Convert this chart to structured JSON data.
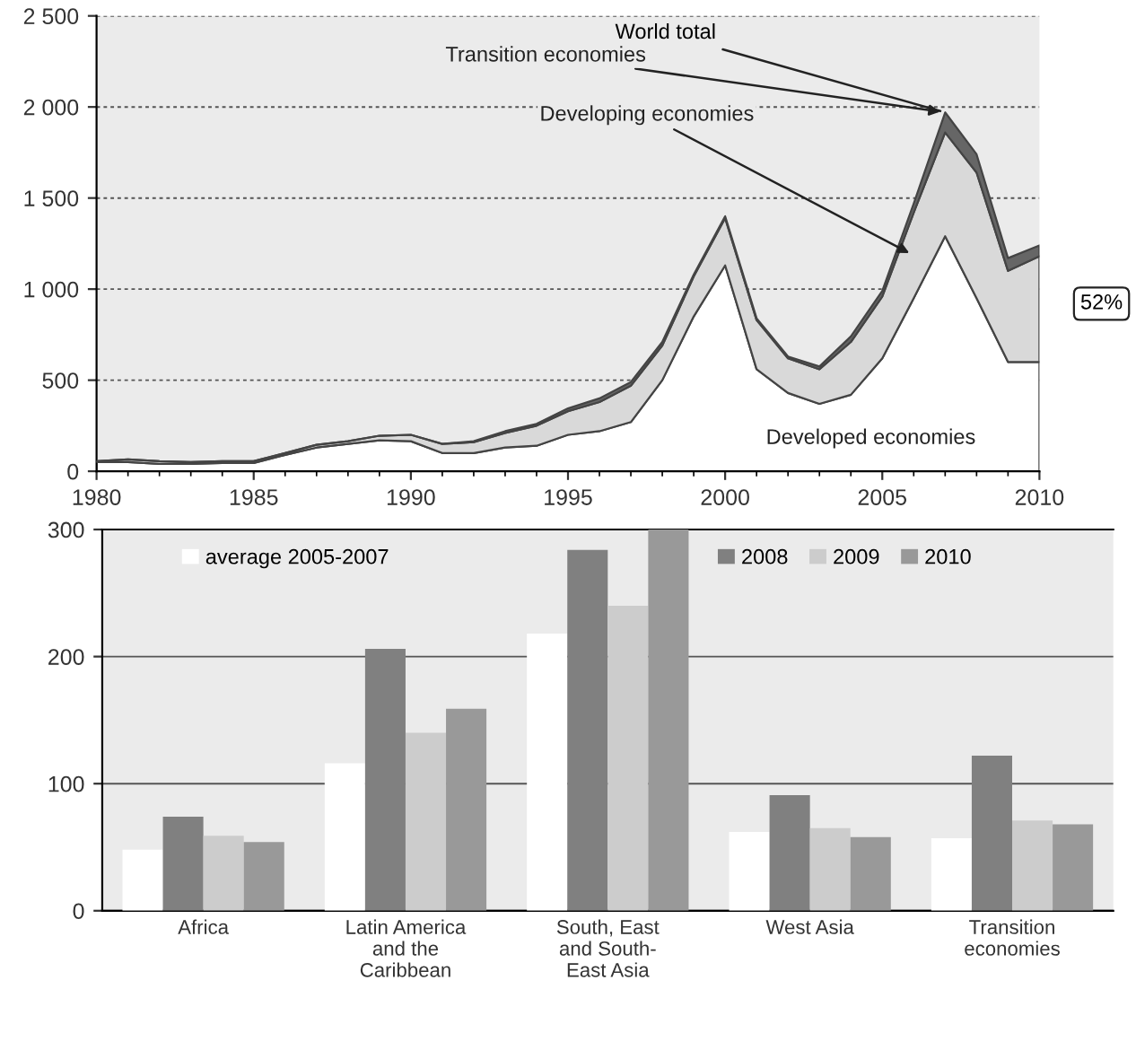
{
  "chart_data": [
    {
      "type": "area",
      "stacked": true,
      "x": [
        1980,
        1981,
        1982,
        1983,
        1984,
        1985,
        1986,
        1987,
        1988,
        1989,
        1990,
        1991,
        1992,
        1993,
        1994,
        1995,
        1996,
        1997,
        1998,
        1999,
        2000,
        2001,
        2002,
        2003,
        2004,
        2005,
        2006,
        2007,
        2008,
        2009,
        2010
      ],
      "series": [
        {
          "name": "Developed economies",
          "color": "#ffffff",
          "values": [
            50,
            50,
            40,
            40,
            45,
            45,
            90,
            130,
            150,
            170,
            165,
            100,
            100,
            130,
            140,
            200,
            220,
            270,
            500,
            850,
            1130,
            560,
            430,
            370,
            420,
            620,
            950,
            1290,
            950,
            600,
            600
          ]
        },
        {
          "name": "Developing economies",
          "color": "#d9d9d9",
          "values": [
            5,
            15,
            15,
            10,
            10,
            10,
            10,
            15,
            15,
            25,
            35,
            50,
            60,
            80,
            110,
            130,
            160,
            200,
            190,
            220,
            260,
            270,
            190,
            190,
            290,
            340,
            470,
            570,
            690,
            500,
            580
          ]
        },
        {
          "name": "Transition economies",
          "color": "#666666",
          "values": [
            0,
            0,
            0,
            0,
            0,
            0,
            0,
            0,
            0,
            0,
            0,
            0,
            5,
            10,
            10,
            15,
            20,
            20,
            20,
            10,
            10,
            10,
            10,
            15,
            30,
            30,
            50,
            110,
            100,
            70,
            60
          ]
        }
      ],
      "xlim": [
        1980,
        2010
      ],
      "xticks": [
        1980,
        1985,
        1990,
        1995,
        2000,
        2005,
        2010
      ],
      "ylim": [
        0,
        2500
      ],
      "yticks": [
        0,
        500,
        {
          "value": 1000,
          "label": "1 000"
        },
        {
          "value": 1500,
          "label": "1 500"
        },
        {
          "value": 2000,
          "label": "2 000"
        },
        {
          "value": 2500,
          "label": "2 500"
        }
      ],
      "grid": "y",
      "annotations": [
        {
          "text": "World total",
          "x": 2007,
          "y": 1970
        },
        {
          "text": "52%",
          "x": 2010,
          "y": 920
        }
      ]
    },
    {
      "type": "bar",
      "categories": [
        "Africa",
        "Latin America\nand the\nCaribbean",
        "South, East\nand South-\nEast Asia",
        "West Asia",
        "Transition\neconomies"
      ],
      "series": [
        {
          "name": "average 2005-2007",
          "color": "#ffffff",
          "values": [
            48,
            116,
            218,
            62,
            57
          ]
        },
        {
          "name": "2008",
          "color": "#808080",
          "values": [
            74,
            206,
            284,
            91,
            122
          ]
        },
        {
          "name": "2009",
          "color": "#cccccc",
          "values": [
            59,
            140,
            240,
            65,
            71
          ]
        },
        {
          "name": "2010",
          "color": "#999999",
          "values": [
            54,
            159,
            300,
            58,
            68
          ]
        }
      ],
      "ylim": [
        0,
        300
      ],
      "yticks": [
        0,
        100,
        200,
        300
      ],
      "grid": "y",
      "legend": "top"
    }
  ]
}
